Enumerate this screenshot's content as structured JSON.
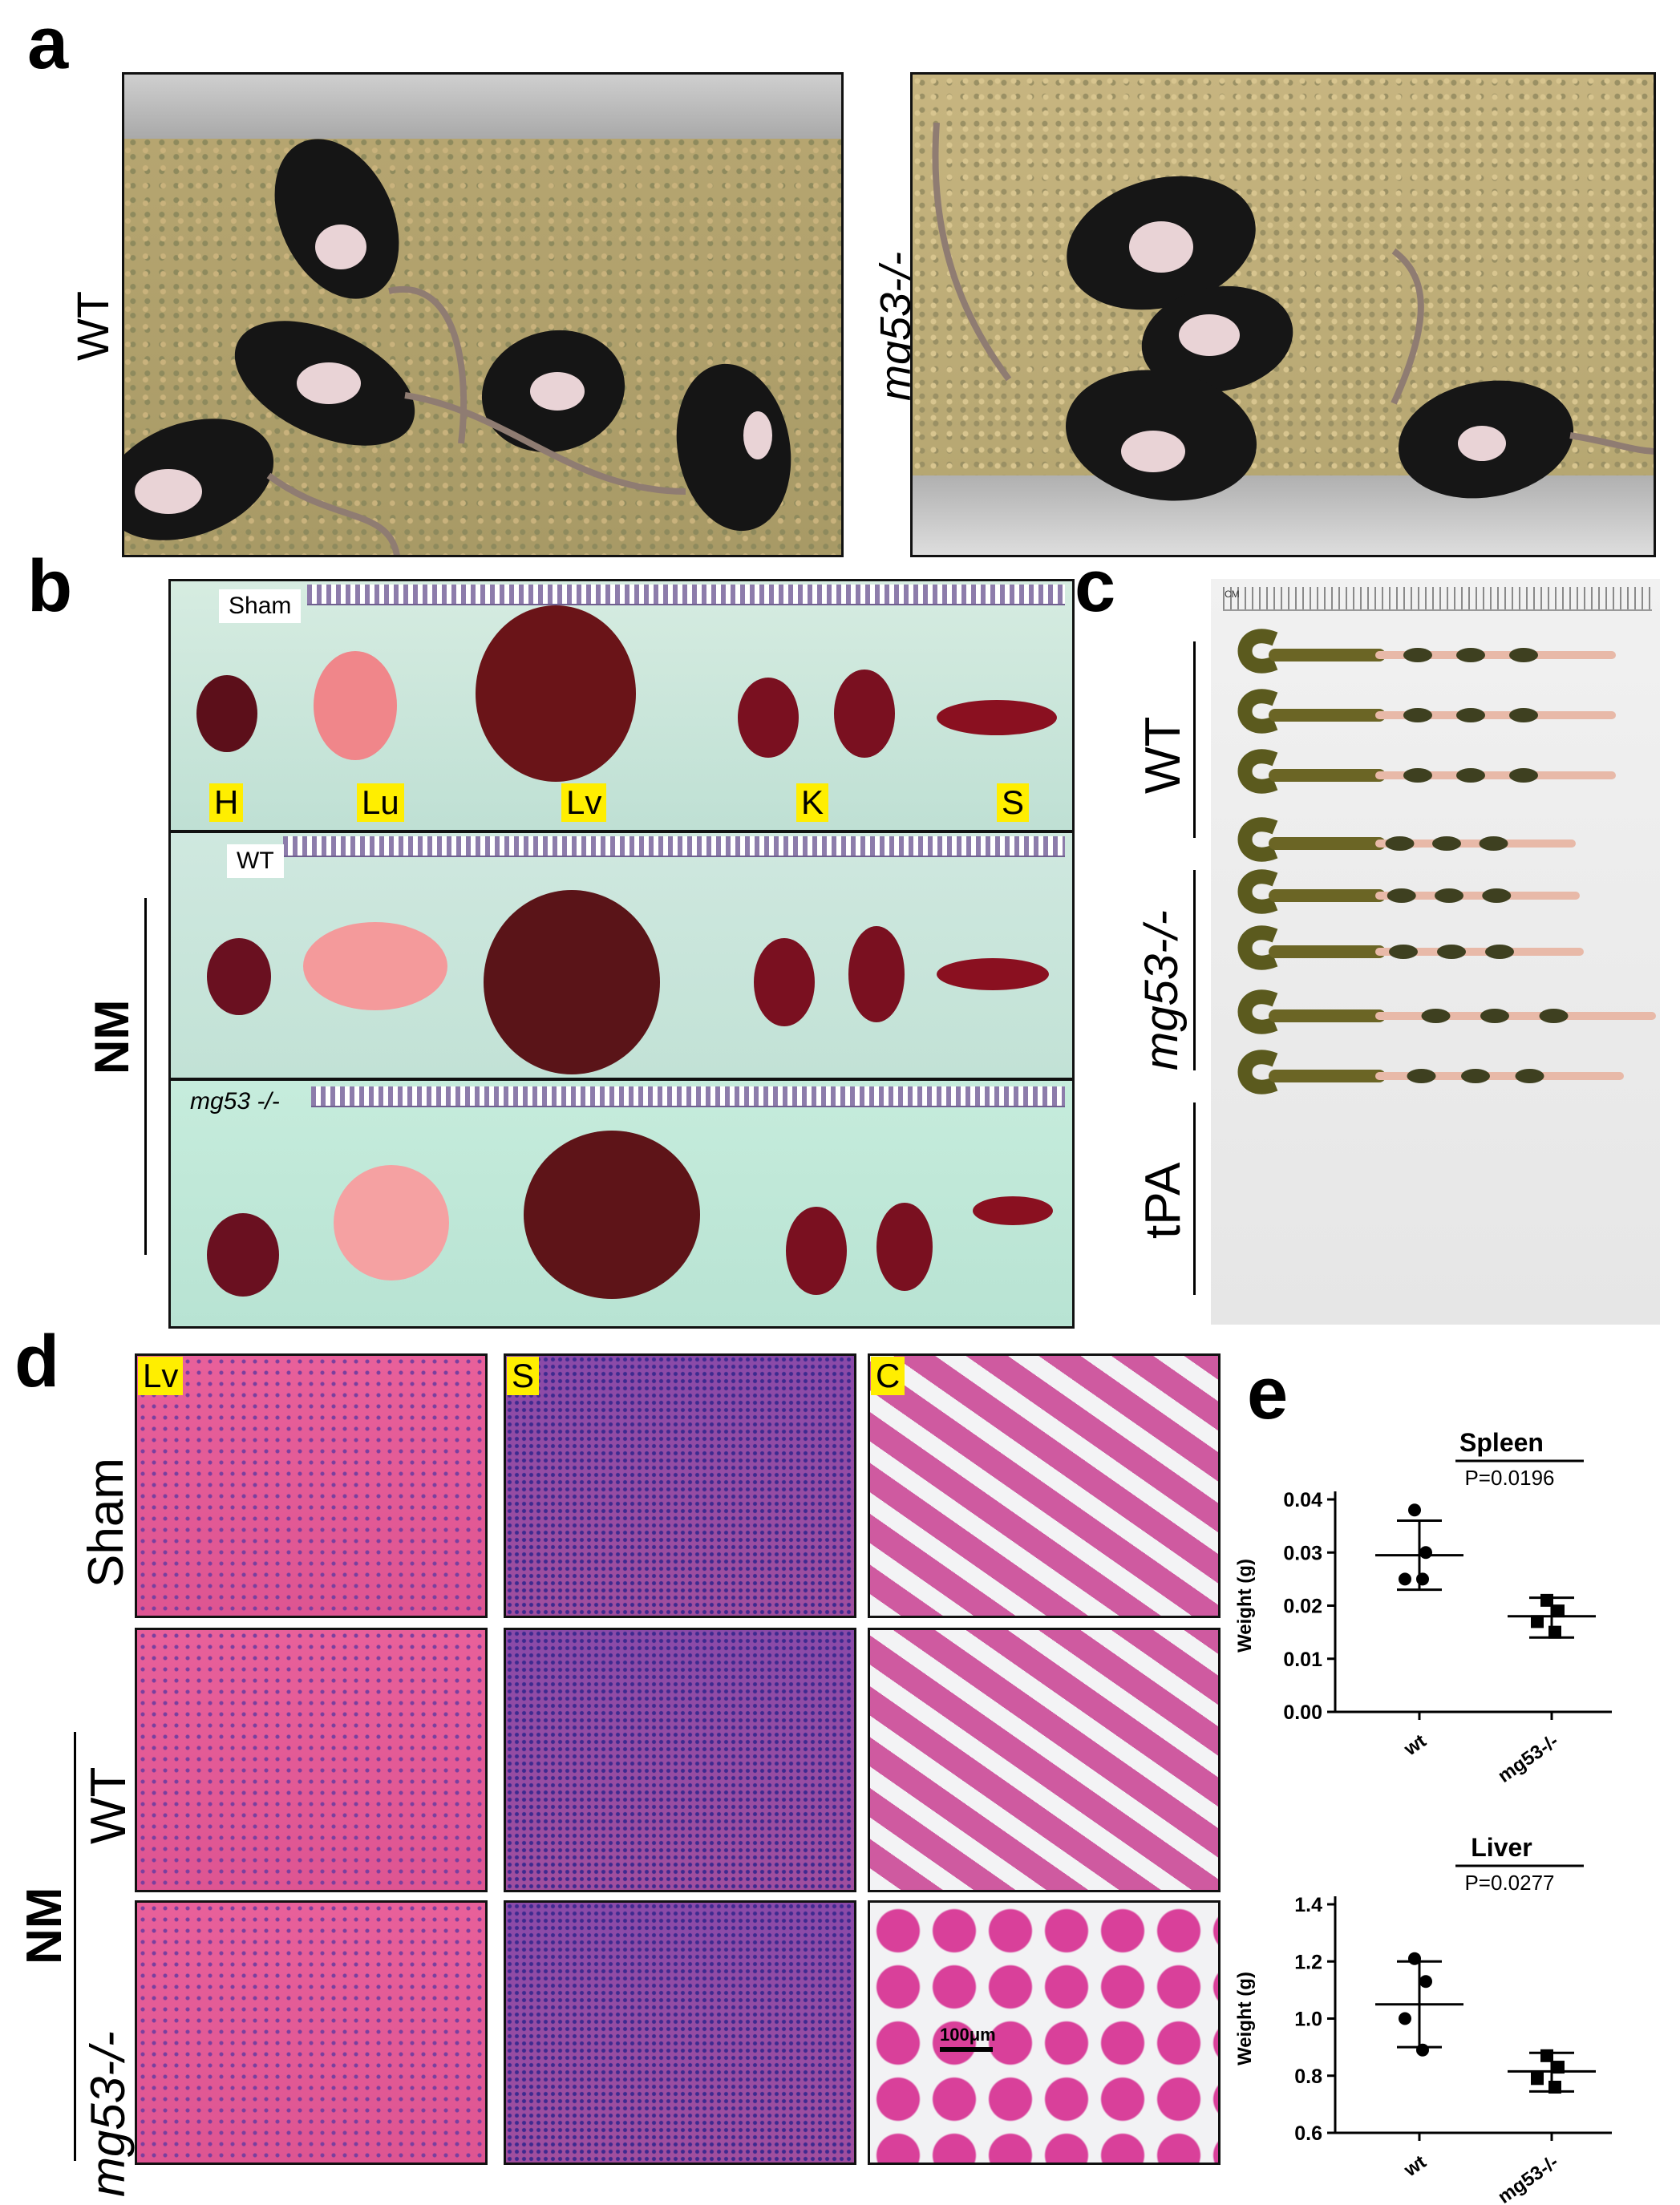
{
  "panels": {
    "a": "a",
    "b": "b",
    "c": "c",
    "d": "d",
    "e": "e"
  },
  "a": {
    "left_label": "WT",
    "right_label": "mg53-/-"
  },
  "b": {
    "row_tags": [
      "Sham",
      "WT",
      "mg53 -/-"
    ],
    "organ_labels": [
      "H",
      "Lu",
      "Lv",
      "K",
      "S"
    ],
    "group_label": "NM"
  },
  "c": {
    "ruler_text": "CM",
    "groups": [
      "WT",
      "mg53-/-",
      "tPA"
    ],
    "intestine_lengths_frac": [
      0.88,
      0.88,
      0.88,
      0.78,
      0.79,
      0.8,
      0.98,
      0.9
    ]
  },
  "d": {
    "col_labels": [
      "Lv",
      "S",
      "C"
    ],
    "row_labels": [
      "Sham",
      "WT",
      "mg53-/-"
    ],
    "group_label": "NM",
    "scale_bar": "100μm"
  },
  "chart_data": [
    {
      "type": "scatter",
      "title": "Spleen",
      "ylabel": "Weight (g)",
      "categories": [
        "wt",
        "mg53-/-"
      ],
      "ylim": [
        0,
        0.04
      ],
      "yticks": [
        "0.00",
        "0.01",
        "0.02",
        "0.03",
        "0.04"
      ],
      "annotation": "P=0.0196",
      "series": [
        {
          "values": [
            0.038,
            0.03,
            0.025,
            0.025
          ],
          "mean": 0.0295,
          "sd_low": 0.023,
          "sd_high": 0.036
        },
        {
          "values": [
            0.021,
            0.019,
            0.017,
            0.015
          ],
          "mean": 0.018,
          "sd_low": 0.014,
          "sd_high": 0.0215
        }
      ]
    },
    {
      "type": "scatter",
      "title": "Liver",
      "ylabel": "Weight (g)",
      "categories": [
        "wt",
        "mg53-/-"
      ],
      "ylim": [
        0.6,
        1.4
      ],
      "yticks": [
        "0.6",
        "0.8",
        "1.0",
        "1.2",
        "1.4"
      ],
      "annotation": "P=0.0277",
      "series": [
        {
          "values": [
            1.21,
            1.13,
            1.0,
            0.89
          ],
          "mean": 1.05,
          "sd_low": 0.9,
          "sd_high": 1.2
        },
        {
          "values": [
            0.87,
            0.83,
            0.79,
            0.76
          ],
          "mean": 0.815,
          "sd_low": 0.745,
          "sd_high": 0.88
        }
      ]
    }
  ]
}
